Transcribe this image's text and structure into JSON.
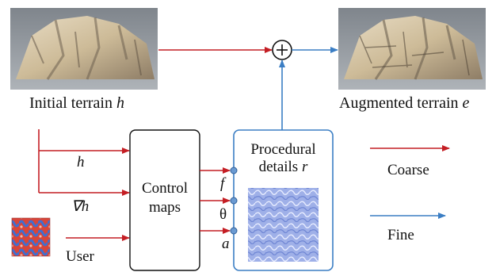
{
  "images": {
    "initial": {
      "caption_text": "Initial terrain ",
      "caption_var": "h"
    },
    "augmented": {
      "caption_text": "Augmented terrain ",
      "caption_var": "e"
    },
    "user": {
      "caption": "User"
    }
  },
  "inputs": {
    "h": "h",
    "grad_h": "∇h"
  },
  "control_box": {
    "line1": "Control",
    "line2": "maps"
  },
  "procedural_box": {
    "line1": "Procedural",
    "line2_text": "details ",
    "line2_var": "r"
  },
  "params": {
    "f": "f",
    "theta": "θ",
    "a": "a"
  },
  "sum_symbol": "+",
  "legend": {
    "coarse": {
      "label": "Coarse",
      "color": "#c0392b"
    },
    "fine": {
      "label": "Fine",
      "color": "#3b7ec4"
    }
  },
  "colors": {
    "red": "#c41e24",
    "blue": "#3b7ec4"
  }
}
